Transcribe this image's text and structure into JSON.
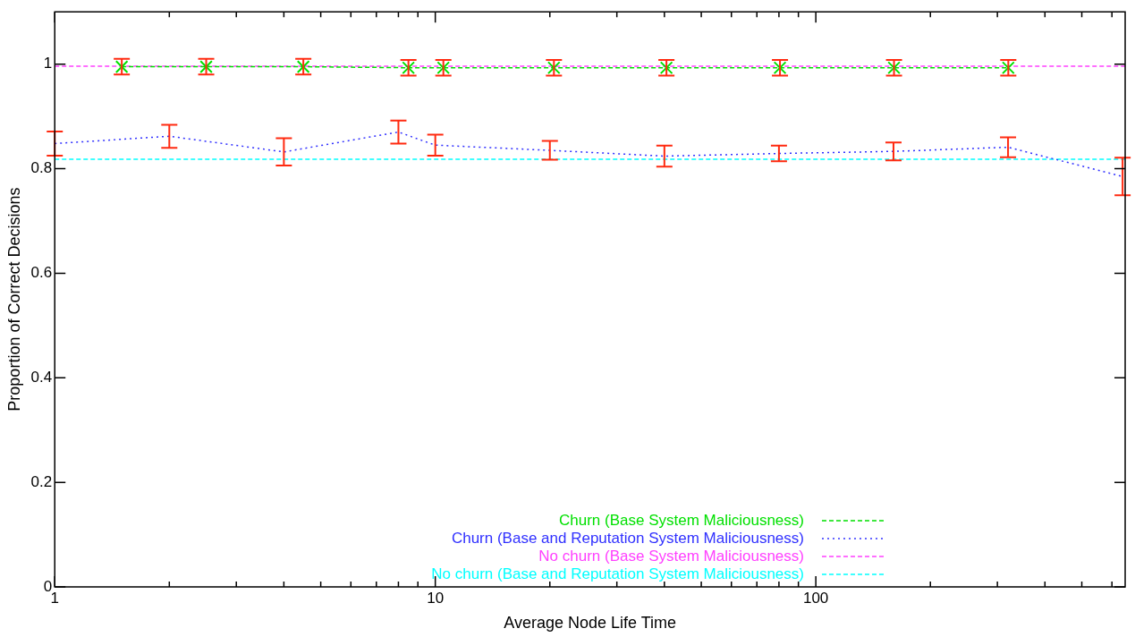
{
  "chart_data": {
    "type": "line",
    "xlabel": "Average Node Life Time",
    "ylabel": "Proportion of Correct Decisions",
    "log": "x",
    "xlim": [
      1,
      650
    ],
    "ylim": [
      0,
      1.1
    ],
    "xticks": [
      1,
      {
        "value": 2,
        "label": null
      },
      {
        "value": 3,
        "label": null
      },
      {
        "value": 4,
        "label": null
      },
      {
        "value": 5,
        "label": null
      },
      {
        "value": 6,
        "label": null
      },
      {
        "value": 7,
        "label": null
      },
      {
        "value": 8,
        "label": null
      },
      {
        "value": 9,
        "label": null
      },
      10,
      {
        "value": 20,
        "label": null
      },
      {
        "value": 30,
        "label": null
      },
      {
        "value": 40,
        "label": null
      },
      {
        "value": 50,
        "label": null
      },
      {
        "value": 60,
        "label": null
      },
      {
        "value": 70,
        "label": null
      },
      {
        "value": 80,
        "label": null
      },
      {
        "value": 90,
        "label": null
      },
      100,
      {
        "value": 200,
        "label": null
      },
      {
        "value": 300,
        "label": null
      },
      {
        "value": 400,
        "label": null
      },
      {
        "value": 500,
        "label": null
      },
      {
        "value": 600,
        "label": null
      }
    ],
    "yticks": [
      0,
      0.2,
      0.4,
      0.6,
      0.8,
      1
    ],
    "legend": "bottom",
    "marker": "none",
    "series": [
      {
        "name": "Churn (Base System Maliciousness)",
        "color": "#00e000",
        "line_style": "dashed",
        "marker": "cross",
        "x": [
          1.5,
          2.5,
          4.5,
          8.5,
          10.5,
          20.5,
          40.5,
          80.5,
          160.5,
          320.5
        ],
        "values": [
          0.995,
          0.995,
          0.995,
          0.993,
          0.993,
          0.993,
          0.993,
          0.993,
          0.993,
          0.993
        ],
        "errors": [
          0.015,
          0.015,
          0.015,
          0.015,
          0.015,
          0.015,
          0.015,
          0.015,
          0.015,
          0.015
        ]
      },
      {
        "name": "Churn (Base and Reputation System Maliciousness)",
        "color": "#3030ff",
        "line_style": "dotted",
        "x": [
          1,
          2,
          4,
          8,
          10,
          20,
          40,
          80,
          160,
          320,
          640
        ],
        "values": [
          0.848,
          0.862,
          0.832,
          0.87,
          0.845,
          0.835,
          0.824,
          0.829,
          0.833,
          0.841,
          0.785
        ],
        "errors": [
          0.023,
          0.022,
          0.026,
          0.022,
          0.02,
          0.018,
          0.02,
          0.015,
          0.017,
          0.019,
          0.036
        ]
      },
      {
        "name": "No churn (Base System Maliciousness)",
        "color": "#ff40ff",
        "line_style": "dashed",
        "x": [
          1,
          650
        ],
        "values": [
          0.996,
          0.996
        ]
      },
      {
        "name": "No churn (Base and Reputation System Maliciousness)",
        "color": "#00ffff",
        "line_style": "dashed",
        "x": [
          1,
          650
        ],
        "values": [
          0.818,
          0.818
        ]
      }
    ]
  }
}
